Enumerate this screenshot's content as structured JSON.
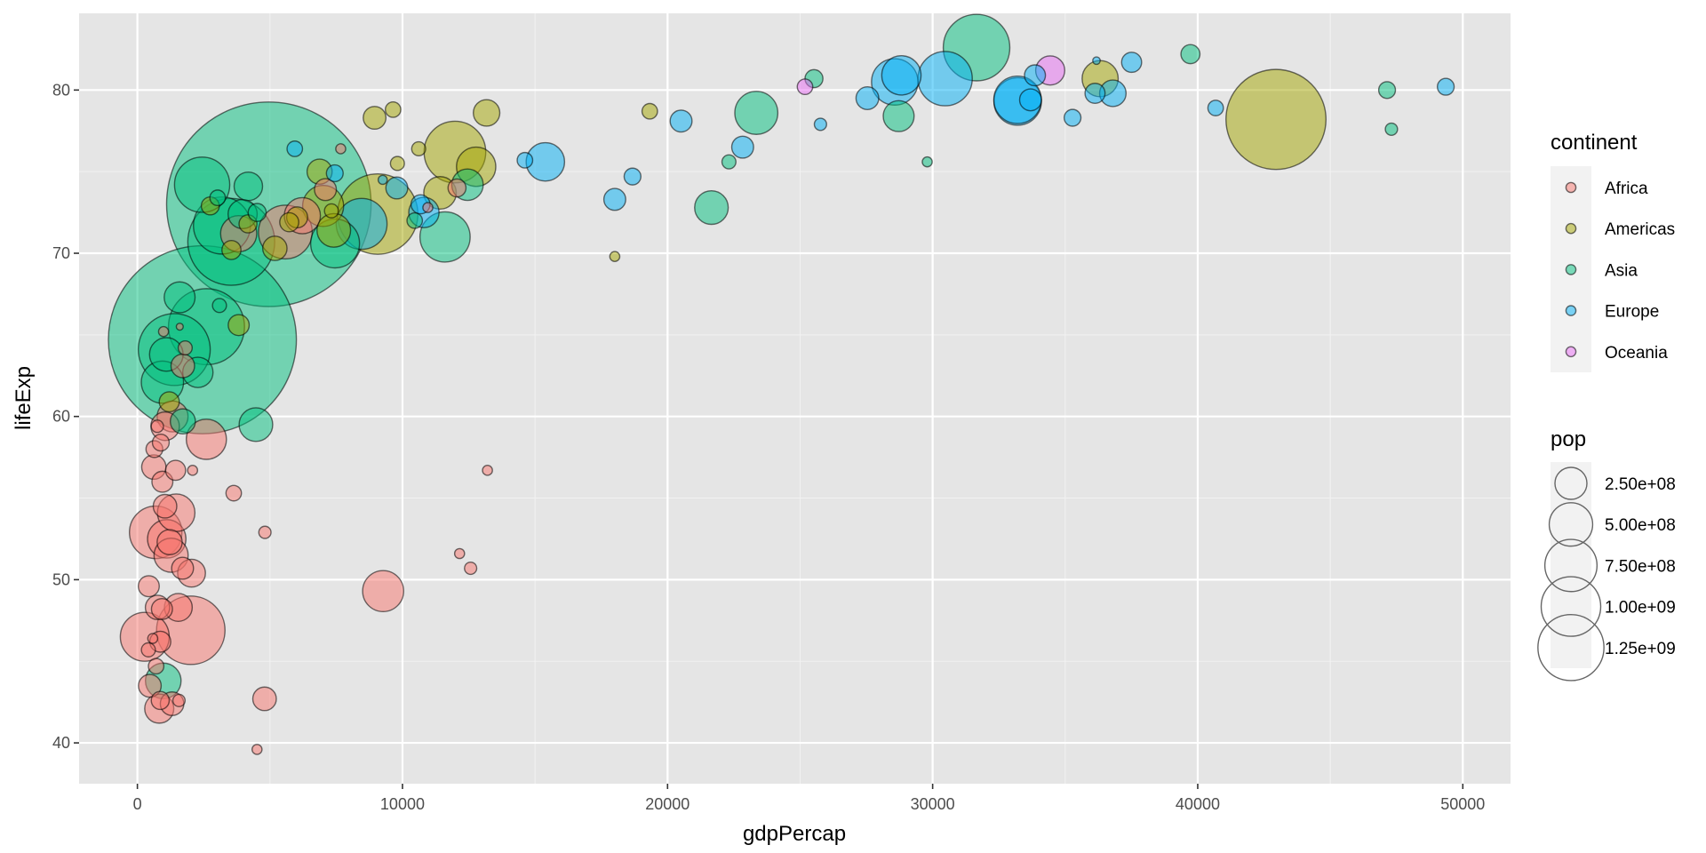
{
  "chart_data": {
    "type": "scatter",
    "xlabel": "gdpPercap",
    "ylabel": "lifeExp",
    "xlim": [
      -2200,
      51800
    ],
    "ylim": [
      37.5,
      84.7
    ],
    "x_ticks": [
      0,
      10000,
      20000,
      30000,
      40000,
      50000
    ],
    "x_tick_labels": [
      "0",
      "10000",
      "20000",
      "30000",
      "40000",
      "50000"
    ],
    "y_ticks": [
      40,
      50,
      60,
      70,
      80
    ],
    "y_tick_labels": [
      "40",
      "50",
      "60",
      "70",
      "80"
    ],
    "grid": true,
    "background": "#e5e5e5",
    "point_alpha": 0.5,
    "legend_placement": "right",
    "color_legend": {
      "title": "continent",
      "items": [
        {
          "label": "Africa",
          "color": "#F8766D"
        },
        {
          "label": "Americas",
          "color": "#A3A500"
        },
        {
          "label": "Asia",
          "color": "#00BF7D"
        },
        {
          "label": "Europe",
          "color": "#00B0F6"
        },
        {
          "label": "Oceania",
          "color": "#E76BF3"
        }
      ]
    },
    "size_legend": {
      "title": "pop",
      "items": [
        {
          "label": "2.50e+08",
          "value": 250000000
        },
        {
          "label": "5.00e+08",
          "value": 500000000
        },
        {
          "label": "7.50e+08",
          "value": 750000000
        },
        {
          "label": "1.00e+09",
          "value": 1000000000
        },
        {
          "label": "1.25e+09",
          "value": 1250000000
        }
      ]
    },
    "series": [
      {
        "name": "Africa",
        "points": [
          [
            6223,
            72.3,
            33
          ],
          [
            4797,
            42.7,
            12
          ],
          [
            1441,
            56.7,
            8
          ],
          [
            12570,
            50.7,
            2
          ],
          [
            1217,
            52.3,
            14
          ],
          [
            430,
            49.6,
            9
          ],
          [
            2042,
            50.4,
            18
          ],
          [
            706,
            44.7,
            4
          ],
          [
            1704,
            50.7,
            10
          ],
          [
            986,
            65.2,
            1
          ],
          [
            278,
            46.5,
            65
          ],
          [
            3633,
            55.3,
            4
          ],
          [
            1544,
            48.3,
            18
          ],
          [
            2082,
            56.7,
            1
          ],
          [
            5581,
            71.3,
            80
          ],
          [
            12154,
            51.6,
            1
          ],
          [
            641,
            58.0,
            5
          ],
          [
            690,
            52.9,
            76
          ],
          [
            13206,
            56.7,
            1
          ],
          [
            753,
            59.4,
            2
          ],
          [
            1328,
            60.0,
            23
          ],
          [
            943,
            56.0,
            9
          ],
          [
            579,
            46.4,
            1
          ],
          [
            1463,
            54.1,
            36
          ],
          [
            1569,
            42.6,
            2
          ],
          [
            415,
            45.7,
            3
          ],
          [
            12057,
            74.0,
            6
          ],
          [
            1045,
            59.4,
            19
          ],
          [
            759,
            48.3,
            13
          ],
          [
            1042,
            54.5,
            12
          ],
          [
            1803,
            64.2,
            3
          ],
          [
            10957,
            72.8,
            1
          ],
          [
            3820,
            71.2,
            33
          ],
          [
            824,
            42.1,
            20
          ],
          [
            4811,
            52.9,
            2
          ],
          [
            620,
            56.9,
            13
          ],
          [
            2014,
            46.9,
            135
          ],
          [
            7670,
            76.4,
            1
          ],
          [
            863,
            46.2,
            9
          ],
          [
            1598,
            65.5,
            0.2
          ],
          [
            1712,
            63.1,
            12
          ],
          [
            862,
            42.6,
            6
          ],
          [
            926,
            48.2,
            9
          ],
          [
            9270,
            49.3,
            44
          ],
          [
            2602,
            58.6,
            42
          ],
          [
            4513,
            39.6,
            1
          ],
          [
            1107,
            52.5,
            38
          ],
          [
            883,
            58.4,
            5
          ],
          [
            7093,
            73.9,
            10
          ],
          [
            1271,
            51.5,
            29
          ],
          [
            469,
            43.5,
            11
          ],
          [
            1308,
            42.4,
            12
          ]
        ]
      },
      {
        "name": "Americas",
        "points": [
          [
            12779,
            75.3,
            40
          ],
          [
            3822,
            65.6,
            9
          ],
          [
            9066,
            72.4,
            190
          ],
          [
            36319,
            80.7,
            33
          ],
          [
            13172,
            78.6,
            16
          ],
          [
            7007,
            72.9,
            44
          ],
          [
            9645,
            78.8,
            4
          ],
          [
            8948,
            78.3,
            11
          ],
          [
            6025,
            72.2,
            9
          ],
          [
            6873,
            75.0,
            14
          ],
          [
            5728,
            71.9,
            7
          ],
          [
            5186,
            70.3,
            13
          ],
          [
            1202,
            60.9,
            8
          ],
          [
            3548,
            70.2,
            7
          ],
          [
            7321,
            72.6,
            3
          ],
          [
            11978,
            76.2,
            108
          ],
          [
            2749,
            72.9,
            6
          ],
          [
            9809,
            75.5,
            3
          ],
          [
            4173,
            71.8,
            6
          ],
          [
            7409,
            71.4,
            28
          ],
          [
            19329,
            78.7,
            4
          ],
          [
            18009,
            69.8,
            1
          ],
          [
            42952,
            78.2,
            301
          ],
          [
            10611,
            76.4,
            3
          ],
          [
            11416,
            73.7,
            26
          ]
        ]
      },
      {
        "name": "Asia",
        "points": [
          [
            975,
            43.8,
            32
          ],
          [
            29796,
            75.6,
            1
          ],
          [
            1391,
            64.1,
            150
          ],
          [
            1714,
            59.7,
            14
          ],
          [
            4959,
            73.0,
            1319
          ],
          [
            39725,
            82.2,
            7
          ],
          [
            2452,
            64.7,
            1110
          ],
          [
            3541,
            70.7,
            224
          ],
          [
            11606,
            71.0,
            69
          ],
          [
            4471,
            59.5,
            28
          ],
          [
            25523,
            80.7,
            6
          ],
          [
            31656,
            82.6,
            127
          ],
          [
            4519,
            72.5,
            6
          ],
          [
            1593,
            67.3,
            23
          ],
          [
            23348,
            78.6,
            49
          ],
          [
            47307,
            77.6,
            2
          ],
          [
            10461,
            72.0,
            4
          ],
          [
            12452,
            74.2,
            24
          ],
          [
            3096,
            66.8,
            3
          ],
          [
            944,
            62.1,
            47
          ],
          [
            1091,
            63.8,
            28
          ],
          [
            22316,
            75.6,
            3
          ],
          [
            2606,
            65.5,
            169
          ],
          [
            3190,
            71.7,
            91
          ],
          [
            21655,
            72.8,
            28
          ],
          [
            47143,
            80.0,
            5
          ],
          [
            3970,
            72.4,
            20
          ],
          [
            4185,
            74.1,
            19
          ],
          [
            28718,
            78.4,
            23
          ],
          [
            7458,
            70.6,
            65
          ],
          [
            2442,
            74.2,
            85
          ],
          [
            3026,
            73.4,
            4
          ],
          [
            2281,
            62.7,
            22
          ]
        ]
      },
      {
        "name": "Europe",
        "points": [
          [
            5937,
            76.4,
            4
          ],
          [
            36126,
            79.8,
            8
          ],
          [
            33693,
            79.4,
            10
          ],
          [
            7446,
            74.9,
            5
          ],
          [
            10681,
            73.0,
            7
          ],
          [
            14619,
            75.7,
            4
          ],
          [
            22833,
            76.5,
            10
          ],
          [
            35278,
            78.3,
            5
          ],
          [
            33207,
            79.3,
            61
          ],
          [
            30470,
            80.7,
            82
          ],
          [
            27538,
            79.5,
            11
          ],
          [
            18009,
            73.3,
            10
          ],
          [
            36181,
            81.8,
            0.3
          ],
          [
            40676,
            78.9,
            4
          ],
          [
            28570,
            80.5,
            58
          ],
          [
            9254,
            74.5,
            0.7
          ],
          [
            36798,
            79.8,
            16
          ],
          [
            49357,
            80.2,
            5
          ],
          [
            15390,
            75.6,
            38
          ],
          [
            20510,
            78.1,
            10
          ],
          [
            10808,
            72.5,
            22
          ],
          [
            9786,
            74.0,
            10
          ],
          [
            18678,
            74.7,
            5
          ],
          [
            25768,
            77.9,
            2
          ],
          [
            28821,
            80.9,
            40
          ],
          [
            33860,
            80.9,
            9
          ],
          [
            37506,
            81.7,
            8
          ],
          [
            8458,
            71.8,
            71
          ],
          [
            33203,
            79.4,
            61
          ]
        ]
      },
      {
        "name": "Oceania",
        "points": [
          [
            34435,
            81.2,
            20
          ],
          [
            25185,
            80.2,
            4
          ]
        ]
      }
    ]
  }
}
